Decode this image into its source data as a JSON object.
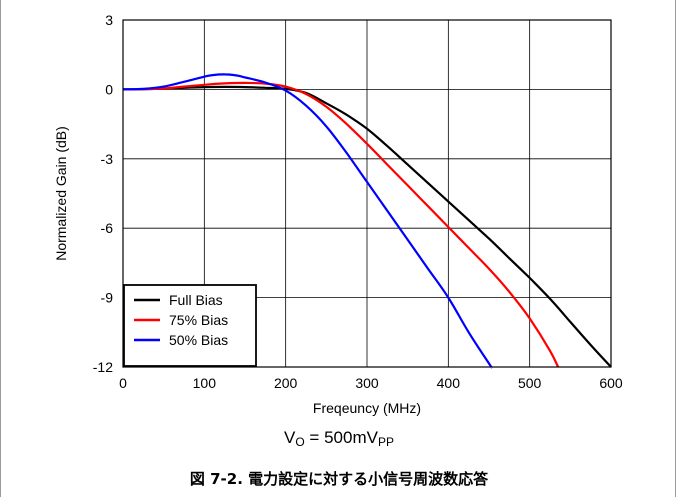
{
  "chart_data": {
    "type": "line",
    "xlabel": "Freqeuncy (MHz)",
    "ylabel": "Normalized Gain (dB)",
    "xlim": [
      0,
      600
    ],
    "ylim": [
      -12,
      3
    ],
    "xticks": [
      0,
      100,
      200,
      300,
      400,
      500,
      600
    ],
    "yticks": [
      3,
      0,
      -3,
      -6,
      -9,
      -12
    ],
    "grid": true,
    "legend_position": "bottom-left",
    "series": [
      {
        "name": "Full Bias",
        "color": "#000000",
        "x": [
          0,
          25,
          50,
          75,
          100,
          125,
          150,
          175,
          200,
          225,
          250,
          275,
          300,
          325,
          350,
          375,
          400,
          425,
          450,
          475,
          500,
          525,
          550,
          575,
          600
        ],
        "y": [
          0,
          0.01,
          0.03,
          0.07,
          0.1,
          0.11,
          0.1,
          0.07,
          0.02,
          -0.15,
          -0.6,
          -1.1,
          -1.7,
          -2.45,
          -3.25,
          -4.05,
          -4.85,
          -5.65,
          -6.45,
          -7.3,
          -8.15,
          -9.05,
          -10.05,
          -11.05,
          -12.0
        ]
      },
      {
        "name": "75% Bias",
        "color": "#ff0000",
        "x": [
          0,
          25,
          50,
          75,
          100,
          125,
          150,
          175,
          200,
          225,
          250,
          275,
          300,
          325,
          350,
          375,
          400,
          425,
          450,
          475,
          500,
          525,
          535
        ],
        "y": [
          0,
          0.01,
          0.04,
          0.12,
          0.2,
          0.26,
          0.28,
          0.25,
          0.12,
          -0.2,
          -0.75,
          -1.5,
          -2.35,
          -3.25,
          -4.15,
          -5.05,
          -5.95,
          -6.85,
          -7.75,
          -8.75,
          -9.9,
          -11.3,
          -12.0
        ]
      },
      {
        "name": "50% Bias",
        "color": "#0000ff",
        "x": [
          0,
          25,
          50,
          75,
          100,
          110,
          125,
          140,
          150,
          175,
          200,
          225,
          250,
          275,
          300,
          325,
          350,
          375,
          400,
          425,
          450,
          453
        ],
        "y": [
          0,
          0.02,
          0.12,
          0.33,
          0.55,
          0.62,
          0.65,
          0.6,
          0.52,
          0.3,
          -0.05,
          -0.7,
          -1.6,
          -2.75,
          -4.0,
          -5.25,
          -6.5,
          -7.75,
          -9.0,
          -10.5,
          -11.85,
          -12.0
        ]
      }
    ]
  },
  "condition": {
    "prefix": "V",
    "prefix_sub": "O",
    "middle": " = 500mV",
    "suffix_sub": "PP"
  },
  "caption": "図 7-2. 電力設定に対する小信号周波数応答"
}
